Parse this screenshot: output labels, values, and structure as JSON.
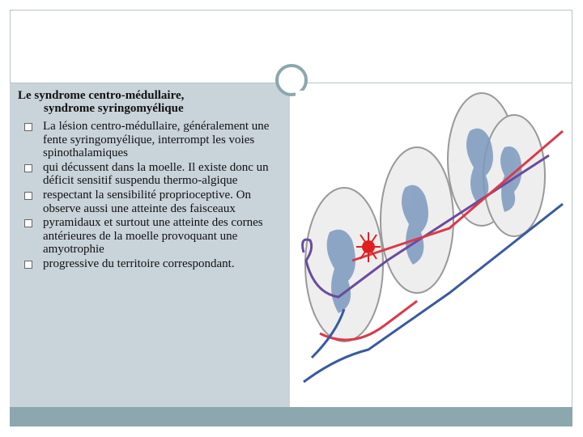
{
  "slide": {
    "title": [
      "Le syndrome centro-médullaire,",
      "syndrome syringomyélique"
    ],
    "bullets": [
      "La lésion centro-médullaire, généralement une fente syringomyélique, interrompt les voies spinothalamiques",
      "qui décussent dans la moelle. Il existe donc un déficit sensitif suspendu thermo-algique",
      "respectant la sensibilité proprioceptive. On observe aussi une atteinte des faisceaux",
      "pyramidaux et surtout une atteinte des cornes antérieures de la moelle provoquant une amyotrophie",
      "progressive du territoire correspondant."
    ]
  }
}
